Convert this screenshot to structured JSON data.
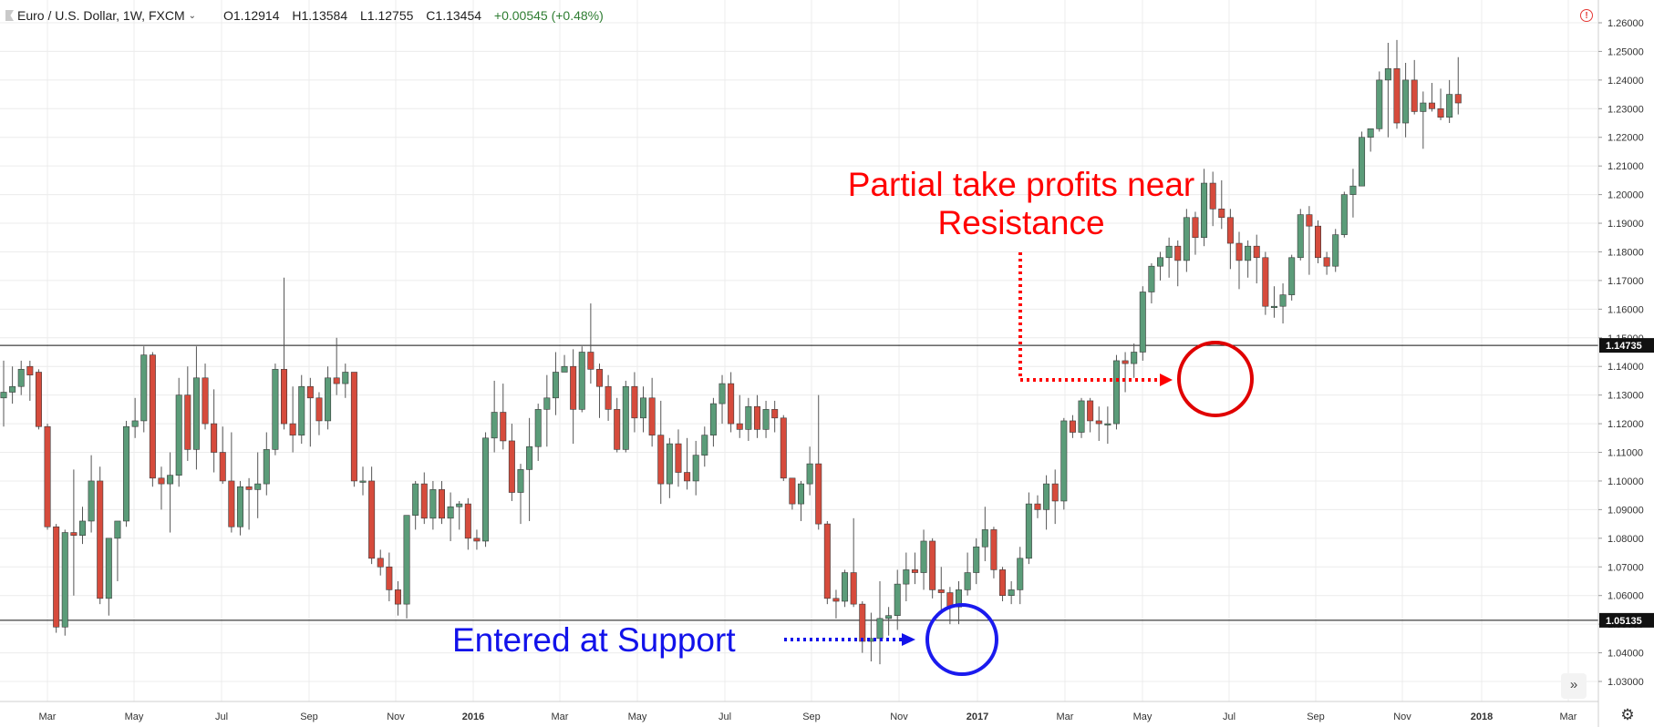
{
  "header": {
    "symbol": "Euro / U.S. Dollar, 1W, FXCM",
    "ohlc": {
      "open": "O1.12914",
      "high": "H1.13584",
      "low": "L1.12755",
      "close": "C1.13454",
      "change": "+0.00545 (+0.48%)"
    }
  },
  "icons": {
    "collapse": "collapse-arrow-icon",
    "chevron": "chevron-down-icon",
    "alert": "alert-icon",
    "settings": "gear-icon",
    "scroll": "double-chevron-right-icon"
  },
  "annotations": {
    "resistance_line1": "Partial take profits near",
    "resistance_line2": "Resistance",
    "support": "Entered at Support"
  },
  "colors": {
    "up": "#5b9c79",
    "down": "#d64b3c",
    "annotation_red": "#ff0000",
    "annotation_blue": "#1212ea",
    "grid": "#ececec"
  },
  "chart_data": {
    "type": "candlestick",
    "title": "",
    "ylim": [
      1.025,
      1.265
    ],
    "y_ticks": [
      "1.03000",
      "1.04000",
      "1.05000",
      "1.06000",
      "1.07000",
      "1.08000",
      "1.09000",
      "1.10000",
      "1.11000",
      "1.12000",
      "1.13000",
      "1.14000",
      "1.15000",
      "1.16000",
      "1.17000",
      "1.18000",
      "1.19000",
      "1.20000",
      "1.21000",
      "1.22000",
      "1.23000",
      "1.24000",
      "1.25000",
      "1.26000"
    ],
    "x_ticks": [
      "Mar",
      "May",
      "Jul",
      "Sep",
      "Nov",
      "2016",
      "Mar",
      "May",
      "Jul",
      "Sep",
      "Nov",
      "2017",
      "Mar",
      "May",
      "Jul",
      "Sep",
      "Nov",
      "2018",
      "Mar"
    ],
    "x_ticks_bold": [
      "2016",
      "2017",
      "2018"
    ],
    "hlines": [
      {
        "value": 1.14735,
        "label": "1.14735"
      },
      {
        "value": 1.05135,
        "label": "1.05135"
      }
    ],
    "ohlc": [
      [
        1.129,
        1.142,
        1.119,
        1.131
      ],
      [
        1.131,
        1.14,
        1.127,
        1.133
      ],
      [
        1.133,
        1.142,
        1.13,
        1.139
      ],
      [
        1.14,
        1.142,
        1.128,
        1.137
      ],
      [
        1.138,
        1.139,
        1.118,
        1.119
      ],
      [
        1.119,
        1.12,
        1.083,
        1.084
      ],
      [
        1.084,
        1.085,
        1.047,
        1.049
      ],
      [
        1.049,
        1.083,
        1.046,
        1.082
      ],
      [
        1.082,
        1.104,
        1.06,
        1.081
      ],
      [
        1.081,
        1.091,
        1.078,
        1.086
      ],
      [
        1.086,
        1.109,
        1.082,
        1.1
      ],
      [
        1.1,
        1.105,
        1.057,
        1.059
      ],
      [
        1.059,
        1.08,
        1.053,
        1.08
      ],
      [
        1.08,
        1.086,
        1.065,
        1.086
      ],
      [
        1.086,
        1.121,
        1.084,
        1.119
      ],
      [
        1.119,
        1.129,
        1.115,
        1.121
      ],
      [
        1.121,
        1.147,
        1.117,
        1.144
      ],
      [
        1.144,
        1.145,
        1.098,
        1.101
      ],
      [
        1.101,
        1.105,
        1.09,
        1.099
      ],
      [
        1.099,
        1.11,
        1.082,
        1.102
      ],
      [
        1.102,
        1.136,
        1.098,
        1.13
      ],
      [
        1.13,
        1.14,
        1.107,
        1.111
      ],
      [
        1.111,
        1.147,
        1.104,
        1.136
      ],
      [
        1.136,
        1.141,
        1.118,
        1.12
      ],
      [
        1.12,
        1.132,
        1.103,
        1.11
      ],
      [
        1.11,
        1.119,
        1.099,
        1.1
      ],
      [
        1.1,
        1.117,
        1.082,
        1.084
      ],
      [
        1.084,
        1.1,
        1.081,
        1.098
      ],
      [
        1.098,
        1.101,
        1.083,
        1.097
      ],
      [
        1.097,
        1.11,
        1.087,
        1.099
      ],
      [
        1.099,
        1.117,
        1.095,
        1.111
      ],
      [
        1.111,
        1.141,
        1.109,
        1.139
      ],
      [
        1.139,
        1.171,
        1.118,
        1.12
      ],
      [
        1.12,
        1.133,
        1.11,
        1.116
      ],
      [
        1.116,
        1.137,
        1.113,
        1.133
      ],
      [
        1.133,
        1.136,
        1.112,
        1.129
      ],
      [
        1.129,
        1.131,
        1.116,
        1.121
      ],
      [
        1.121,
        1.14,
        1.118,
        1.136
      ],
      [
        1.136,
        1.15,
        1.13,
        1.134
      ],
      [
        1.134,
        1.141,
        1.129,
        1.138
      ],
      [
        1.138,
        1.138,
        1.098,
        1.1
      ],
      [
        1.1,
        1.105,
        1.095,
        1.1
      ],
      [
        1.1,
        1.105,
        1.071,
        1.073
      ],
      [
        1.073,
        1.076,
        1.067,
        1.07
      ],
      [
        1.07,
        1.075,
        1.058,
        1.062
      ],
      [
        1.062,
        1.065,
        1.053,
        1.057
      ],
      [
        1.057,
        1.088,
        1.052,
        1.088
      ],
      [
        1.088,
        1.1,
        1.083,
        1.099
      ],
      [
        1.099,
        1.103,
        1.085,
        1.087
      ],
      [
        1.087,
        1.1,
        1.083,
        1.097
      ],
      [
        1.097,
        1.1,
        1.085,
        1.087
      ],
      [
        1.087,
        1.096,
        1.079,
        1.091
      ],
      [
        1.091,
        1.093,
        1.083,
        1.092
      ],
      [
        1.092,
        1.094,
        1.076,
        1.08
      ],
      [
        1.08,
        1.083,
        1.076,
        1.079
      ],
      [
        1.079,
        1.117,
        1.077,
        1.115
      ],
      [
        1.115,
        1.135,
        1.11,
        1.124
      ],
      [
        1.124,
        1.134,
        1.111,
        1.114
      ],
      [
        1.114,
        1.12,
        1.093,
        1.096
      ],
      [
        1.096,
        1.106,
        1.085,
        1.104
      ],
      [
        1.104,
        1.122,
        1.086,
        1.112
      ],
      [
        1.112,
        1.127,
        1.107,
        1.125
      ],
      [
        1.125,
        1.137,
        1.112,
        1.129
      ],
      [
        1.129,
        1.145,
        1.123,
        1.138
      ],
      [
        1.138,
        1.144,
        1.139,
        1.14
      ],
      [
        1.14,
        1.146,
        1.113,
        1.125
      ],
      [
        1.125,
        1.147,
        1.124,
        1.145
      ],
      [
        1.145,
        1.162,
        1.134,
        1.139
      ],
      [
        1.139,
        1.141,
        1.122,
        1.133
      ],
      [
        1.133,
        1.137,
        1.121,
        1.125
      ],
      [
        1.125,
        1.129,
        1.11,
        1.111
      ],
      [
        1.111,
        1.135,
        1.11,
        1.133
      ],
      [
        1.133,
        1.138,
        1.117,
        1.122
      ],
      [
        1.122,
        1.133,
        1.117,
        1.129
      ],
      [
        1.129,
        1.136,
        1.112,
        1.116
      ],
      [
        1.116,
        1.128,
        1.092,
        1.099
      ],
      [
        1.099,
        1.115,
        1.094,
        1.113
      ],
      [
        1.113,
        1.118,
        1.098,
        1.103
      ],
      [
        1.103,
        1.115,
        1.097,
        1.1
      ],
      [
        1.1,
        1.114,
        1.095,
        1.109
      ],
      [
        1.109,
        1.119,
        1.105,
        1.116
      ],
      [
        1.116,
        1.129,
        1.112,
        1.127
      ],
      [
        1.127,
        1.137,
        1.12,
        1.134
      ],
      [
        1.134,
        1.138,
        1.117,
        1.12
      ],
      [
        1.12,
        1.13,
        1.115,
        1.118
      ],
      [
        1.118,
        1.129,
        1.114,
        1.126
      ],
      [
        1.126,
        1.13,
        1.115,
        1.118
      ],
      [
        1.118,
        1.128,
        1.115,
        1.125
      ],
      [
        1.125,
        1.128,
        1.117,
        1.122
      ],
      [
        1.122,
        1.123,
        1.1,
        1.101
      ],
      [
        1.101,
        1.101,
        1.09,
        1.092
      ],
      [
        1.092,
        1.1,
        1.086,
        1.099
      ],
      [
        1.099,
        1.112,
        1.095,
        1.106
      ],
      [
        1.106,
        1.13,
        1.083,
        1.085
      ],
      [
        1.085,
        1.086,
        1.057,
        1.059
      ],
      [
        1.059,
        1.062,
        1.052,
        1.058
      ],
      [
        1.058,
        1.069,
        1.056,
        1.068
      ],
      [
        1.068,
        1.087,
        1.056,
        1.057
      ],
      [
        1.057,
        1.058,
        1.04,
        1.044
      ],
      [
        1.044,
        1.054,
        1.037,
        1.045
      ],
      [
        1.045,
        1.065,
        1.036,
        1.052
      ],
      [
        1.052,
        1.056,
        1.046,
        1.053
      ],
      [
        1.053,
        1.069,
        1.048,
        1.064
      ],
      [
        1.064,
        1.075,
        1.058,
        1.069
      ],
      [
        1.069,
        1.075,
        1.064,
        1.068
      ],
      [
        1.068,
        1.083,
        1.062,
        1.079
      ],
      [
        1.079,
        1.08,
        1.059,
        1.062
      ],
      [
        1.062,
        1.07,
        1.054,
        1.061
      ],
      [
        1.061,
        1.063,
        1.05,
        1.056
      ],
      [
        1.056,
        1.065,
        1.05,
        1.062
      ],
      [
        1.062,
        1.075,
        1.06,
        1.068
      ],
      [
        1.068,
        1.08,
        1.064,
        1.077
      ],
      [
        1.077,
        1.091,
        1.072,
        1.083
      ],
      [
        1.083,
        1.084,
        1.066,
        1.069
      ],
      [
        1.069,
        1.07,
        1.058,
        1.06
      ],
      [
        1.06,
        1.065,
        1.057,
        1.062
      ],
      [
        1.062,
        1.077,
        1.057,
        1.073
      ],
      [
        1.073,
        1.096,
        1.071,
        1.092
      ],
      [
        1.092,
        1.095,
        1.087,
        1.09
      ],
      [
        1.09,
        1.102,
        1.083,
        1.099
      ],
      [
        1.099,
        1.104,
        1.085,
        1.093
      ],
      [
        1.093,
        1.122,
        1.09,
        1.121
      ],
      [
        1.121,
        1.123,
        1.115,
        1.117
      ],
      [
        1.117,
        1.129,
        1.115,
        1.128
      ],
      [
        1.128,
        1.129,
        1.117,
        1.121
      ],
      [
        1.121,
        1.126,
        1.114,
        1.12
      ],
      [
        1.12,
        1.126,
        1.113,
        1.12
      ],
      [
        1.12,
        1.144,
        1.118,
        1.142
      ],
      [
        1.142,
        1.145,
        1.131,
        1.141
      ],
      [
        1.141,
        1.148,
        1.136,
        1.145
      ],
      [
        1.145,
        1.168,
        1.142,
        1.166
      ],
      [
        1.166,
        1.176,
        1.162,
        1.175
      ],
      [
        1.175,
        1.18,
        1.17,
        1.178
      ],
      [
        1.178,
        1.185,
        1.171,
        1.182
      ],
      [
        1.182,
        1.184,
        1.168,
        1.177
      ],
      [
        1.177,
        1.195,
        1.173,
        1.192
      ],
      [
        1.192,
        1.194,
        1.179,
        1.185
      ],
      [
        1.185,
        1.209,
        1.182,
        1.204
      ],
      [
        1.204,
        1.208,
        1.189,
        1.195
      ],
      [
        1.195,
        1.205,
        1.188,
        1.192
      ],
      [
        1.192,
        1.195,
        1.174,
        1.183
      ],
      [
        1.183,
        1.187,
        1.167,
        1.177
      ],
      [
        1.177,
        1.184,
        1.171,
        1.182
      ],
      [
        1.182,
        1.186,
        1.169,
        1.178
      ],
      [
        1.178,
        1.18,
        1.158,
        1.161
      ],
      [
        1.161,
        1.168,
        1.157,
        1.161
      ],
      [
        1.161,
        1.169,
        1.155,
        1.165
      ],
      [
        1.165,
        1.179,
        1.163,
        1.178
      ],
      [
        1.178,
        1.195,
        1.177,
        1.193
      ],
      [
        1.193,
        1.196,
        1.172,
        1.189
      ],
      [
        1.189,
        1.191,
        1.176,
        1.178
      ],
      [
        1.178,
        1.18,
        1.172,
        1.175
      ],
      [
        1.175,
        1.188,
        1.173,
        1.186
      ],
      [
        1.186,
        1.201,
        1.185,
        1.2
      ],
      [
        1.2,
        1.209,
        1.192,
        1.203
      ],
      [
        1.203,
        1.222,
        1.203,
        1.22
      ],
      [
        1.22,
        1.223,
        1.215,
        1.223
      ],
      [
        1.223,
        1.243,
        1.222,
        1.24
      ],
      [
        1.24,
        1.253,
        1.22,
        1.244
      ],
      [
        1.244,
        1.254,
        1.223,
        1.225
      ],
      [
        1.225,
        1.246,
        1.22,
        1.24
      ],
      [
        1.24,
        1.247,
        1.228,
        1.229
      ],
      [
        1.229,
        1.236,
        1.216,
        1.232
      ],
      [
        1.232,
        1.239,
        1.229,
        1.23
      ],
      [
        1.23,
        1.237,
        1.226,
        1.227
      ],
      [
        1.227,
        1.24,
        1.225,
        1.235
      ],
      [
        1.235,
        1.248,
        1.228,
        1.232
      ]
    ]
  }
}
